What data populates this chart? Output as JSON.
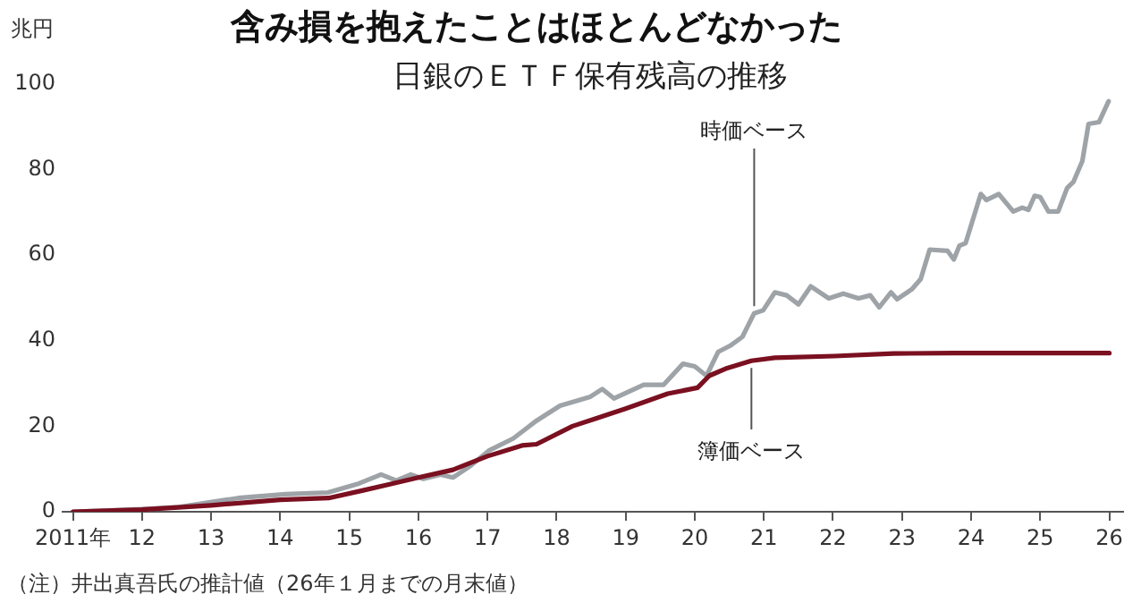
{
  "chart_data": {
    "type": "line",
    "title": "含み損を抱えたことはほとんどなかった",
    "subtitle": "日銀のＥＴＦ保有残高の推移",
    "ylabel": "兆円",
    "xlim": [
      2010.85,
      2026.2
    ],
    "xticks": [
      {
        "value": 2011,
        "label": "2011年"
      },
      {
        "value": 2012,
        "label": "12"
      },
      {
        "value": 2013,
        "label": "13"
      },
      {
        "value": 2014,
        "label": "14"
      },
      {
        "value": 2015,
        "label": "15"
      },
      {
        "value": 2016,
        "label": "16"
      },
      {
        "value": 2017,
        "label": "17"
      },
      {
        "value": 2018,
        "label": "18"
      },
      {
        "value": 2019,
        "label": "19"
      },
      {
        "value": 2020,
        "label": "20"
      },
      {
        "value": 2021,
        "label": "21"
      },
      {
        "value": 2022,
        "label": "22"
      },
      {
        "value": 2023,
        "label": "23"
      },
      {
        "value": 2024,
        "label": "24"
      },
      {
        "value": 2025,
        "label": "25"
      },
      {
        "value": 2026,
        "label": "26"
      }
    ],
    "ylim": [
      0,
      100
    ],
    "yticks": [
      0,
      20,
      40,
      60,
      80,
      100
    ],
    "grid": false,
    "legend": false,
    "marker": "none",
    "line_style": "solid",
    "series": [
      {
        "color": "#9ea3a8",
        "x": [
          2011.0,
          2012.0,
          2012.53,
          2013.39,
          2014.08,
          2014.69,
          2015.14,
          2015.46,
          2015.68,
          2015.89,
          2016.07,
          2016.32,
          2016.5,
          2016.76,
          2017.02,
          2017.37,
          2017.54,
          2017.71,
          2018.05,
          2018.49,
          2018.66,
          2018.83,
          2019.26,
          2019.55,
          2019.83,
          2020.0,
          2020.17,
          2020.34,
          2020.51,
          2020.69,
          2020.86,
          2020.99,
          2021.16,
          2021.33,
          2021.5,
          2021.68,
          2021.94,
          2022.15,
          2022.37,
          2022.54,
          2022.67,
          2022.84,
          2022.93,
          2023.14,
          2023.27,
          2023.4,
          2023.66,
          2023.75,
          2023.83,
          2023.92,
          2024.14,
          2024.22,
          2024.4,
          2024.61,
          2024.74,
          2024.83,
          2024.92,
          2025.0,
          2025.12,
          2025.26,
          2025.39,
          2025.48,
          2025.61,
          2025.7,
          2025.85,
          2025.99
        ],
        "values": [
          0,
          0.6,
          1.1,
          3.2,
          4.1,
          4.5,
          6.6,
          8.7,
          7.3,
          8.7,
          7.7,
          8.7,
          8,
          10.8,
          14.3,
          17.1,
          19.2,
          21.3,
          24.8,
          26.9,
          28.7,
          26.5,
          29.7,
          29.7,
          34.6,
          34,
          31.8,
          37.4,
          38.8,
          40.9,
          46.4,
          47.1,
          51.3,
          50.6,
          48.5,
          52.7,
          49.9,
          51,
          49.9,
          50.6,
          47.8,
          51.3,
          49.7,
          52,
          54.4,
          61.3,
          61,
          59,
          62.2,
          62.8,
          74.3,
          72.9,
          74.3,
          70.2,
          71.1,
          70.6,
          73.9,
          73.6,
          70.2,
          70.2,
          75.7,
          77.1,
          82,
          90.7,
          91.1,
          96
        ]
      },
      {
        "color": "#7a1020",
        "x": [
          2011.0,
          2012.0,
          2013.0,
          2014.0,
          2014.7,
          2015.2,
          2015.6,
          2016.0,
          2016.5,
          2017.0,
          2017.5,
          2017.71,
          2018.23,
          2018.57,
          2019.0,
          2019.61,
          2020.04,
          2020.21,
          2020.47,
          2020.82,
          2021.16,
          2022.02,
          2022.88,
          2023.75,
          2026.0
        ],
        "values": [
          0,
          0.5,
          1.5,
          2.8,
          3.2,
          5,
          6.5,
          8,
          9.8,
          13,
          15.5,
          15.8,
          20,
          21.8,
          24.1,
          27.6,
          29,
          31.8,
          33.6,
          35.3,
          36,
          36.4,
          37,
          37.1,
          37.1
        ]
      }
    ],
    "annotations": [
      {
        "text": "時価ベース",
        "x": 2020.86,
        "y": 46.4
      },
      {
        "text": "簿価ベース",
        "x": 2020.82,
        "y": 35.3
      },
      "（注）井出真吾氏の推計値（26年１月までの月末値）"
    ]
  }
}
